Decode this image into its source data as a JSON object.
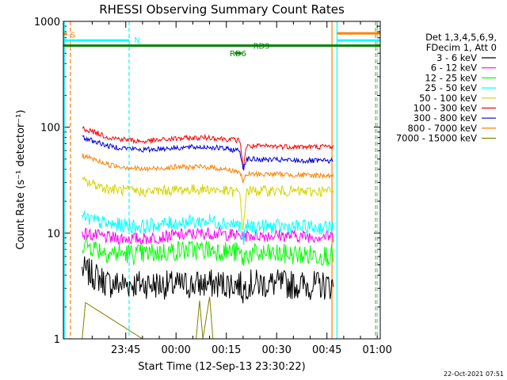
{
  "chart_data": {
    "type": "line",
    "title": "RHESSI Observing Summary Count Rates",
    "xlabel": "Start Time (12-Sep-13 23:30:22)",
    "ylabel": "Count Rate (s⁻¹ detector⁻¹)",
    "yscale": "log",
    "ylim": [
      1,
      1000
    ],
    "xlim_minutes": [
      -3.6,
      90.9
    ],
    "y_ticks": [
      {
        "value": 1,
        "label": "1"
      },
      {
        "value": 10,
        "label": "10"
      },
      {
        "value": 100,
        "label": "100"
      },
      {
        "value": 1000,
        "label": "1000"
      }
    ],
    "x_ticks": [
      {
        "minutes": 15,
        "label": "23:45"
      },
      {
        "minutes": 30,
        "label": "00:00"
      },
      {
        "minutes": 45,
        "label": "00:15"
      },
      {
        "minutes": 60,
        "label": "00:30"
      },
      {
        "minutes": 75,
        "label": "00:45"
      },
      {
        "minutes": 90,
        "label": "01:00"
      }
    ],
    "legend": {
      "placement": "right",
      "header": [
        "Det 1,3,4,5,6,9,",
        "FDecim 1, Att 0"
      ]
    },
    "series": [
      {
        "name": "3 - 6 keV",
        "color": "#000000",
        "x": [
          2,
          10,
          20,
          30,
          40,
          49,
          50,
          51,
          60,
          70,
          77
        ],
        "y": [
          4.5,
          3.3,
          3.3,
          3.2,
          3.3,
          3.3,
          2.8,
          3.3,
          3.3,
          3.2,
          3.2
        ]
      },
      {
        "name": "6 - 12 keV",
        "color": "#ff00ff",
        "x": [
          2,
          10,
          20,
          30,
          40,
          49,
          50,
          51,
          60,
          70,
          77
        ],
        "y": [
          10,
          9,
          8.8,
          9.5,
          10,
          9.5,
          9,
          9.5,
          9.5,
          9.3,
          9.3
        ]
      },
      {
        "name": "12 - 25 keV",
        "color": "#00ff00",
        "x": [
          2,
          10,
          20,
          30,
          40,
          49,
          50,
          51,
          60,
          70,
          77
        ],
        "y": [
          8,
          6.5,
          6.3,
          6.8,
          7,
          6.5,
          5.5,
          6.3,
          6.3,
          6.2,
          6.2
        ]
      },
      {
        "name": "25 - 50 keV",
        "color": "#00ffff",
        "x": [
          2,
          10,
          20,
          30,
          40,
          49,
          50,
          51,
          60,
          70,
          77
        ],
        "y": [
          14,
          12,
          11.5,
          12.5,
          13,
          12,
          8,
          11.5,
          11.5,
          11.3,
          11.3
        ]
      },
      {
        "name": "50 - 100 keV",
        "color": "#d4d400",
        "x": [
          2,
          10,
          20,
          30,
          40,
          49,
          50,
          51,
          60,
          70,
          77
        ],
        "y": [
          31,
          26,
          24.5,
          25.5,
          26,
          24,
          9,
          25,
          25,
          24.5,
          25
        ]
      },
      {
        "name": "100 - 300 keV",
        "color": "#ff0000",
        "x": [
          2,
          10,
          20,
          30,
          40,
          49,
          50,
          51,
          60,
          70,
          77
        ],
        "y": [
          98,
          80,
          73,
          78,
          80,
          75,
          40,
          66,
          66,
          65,
          66
        ]
      },
      {
        "name": "300 - 800 keV",
        "color": "#0000dd",
        "x": [
          2,
          10,
          20,
          30,
          40,
          49,
          50,
          51,
          60,
          70,
          77
        ],
        "y": [
          80,
          66,
          61,
          64,
          65,
          60,
          40,
          50,
          49,
          48,
          48
        ]
      },
      {
        "name": "800 - 7000 keV",
        "color": "#ff8000",
        "x": [
          2,
          10,
          20,
          30,
          40,
          49,
          50,
          51,
          60,
          70,
          77
        ],
        "y": [
          54,
          44,
          40,
          42,
          42,
          38,
          30,
          36,
          36,
          35,
          35
        ]
      },
      {
        "name": "7000 - 15000 keV",
        "color": "#808000",
        "x": [
          2,
          3,
          20,
          36,
          37,
          38,
          40,
          41
        ],
        "y": [
          1,
          2.2,
          1,
          1,
          2.3,
          1,
          2.5,
          1
        ]
      }
    ],
    "annotations": [
      {
        "text": "S",
        "color": "#ff8000",
        "x_minutes": -1.5,
        "y": 750
      },
      {
        "text": "N",
        "color": "#00ffff",
        "x_minutes": 17.5,
        "y": 670
      },
      {
        "text": "RD6",
        "color": "#008000",
        "x_minutes": 46,
        "y": 500
      },
      {
        "text": "RD9",
        "color": "#008000",
        "x_minutes": 53,
        "y": 590
      }
    ],
    "status_bars": [
      {
        "color": "#ff8000",
        "x_start": -3.6,
        "x_end": -2.5,
        "y": 760
      },
      {
        "color": "#00ffff",
        "x_start": -3.6,
        "x_end": 16,
        "y": 660
      },
      {
        "color": "#008000",
        "x_start": -3.6,
        "x_end": 90.9,
        "y": 590
      },
      {
        "color": "#008000",
        "x_start": 47.5,
        "x_end": 49.5,
        "y": 500
      },
      {
        "color": "#ff8000",
        "x_start": 78,
        "x_end": 90.9,
        "y": 770
      },
      {
        "color": "#00ffff",
        "x_start": 78,
        "x_end": 90.9,
        "y": 660
      }
    ],
    "vertical_markers": [
      {
        "color": "#ff8000",
        "dashed": true,
        "x_minutes": -1.5
      },
      {
        "color": "#00ffff",
        "dashed": true,
        "x_minutes": 16
      },
      {
        "color": "#00ffff",
        "dashed": false,
        "x_minutes": 78
      },
      {
        "color": "#ff8000",
        "dashed": false,
        "x_minutes": 76.5
      },
      {
        "color": "#ff8000",
        "dashed": true,
        "x_minutes": 89.5
      },
      {
        "color": "#00ffff",
        "dashed": true,
        "x_minutes": 90
      }
    ],
    "grid": false
  },
  "footer": {
    "timestamp": "22-Oct-2021 07:51"
  }
}
